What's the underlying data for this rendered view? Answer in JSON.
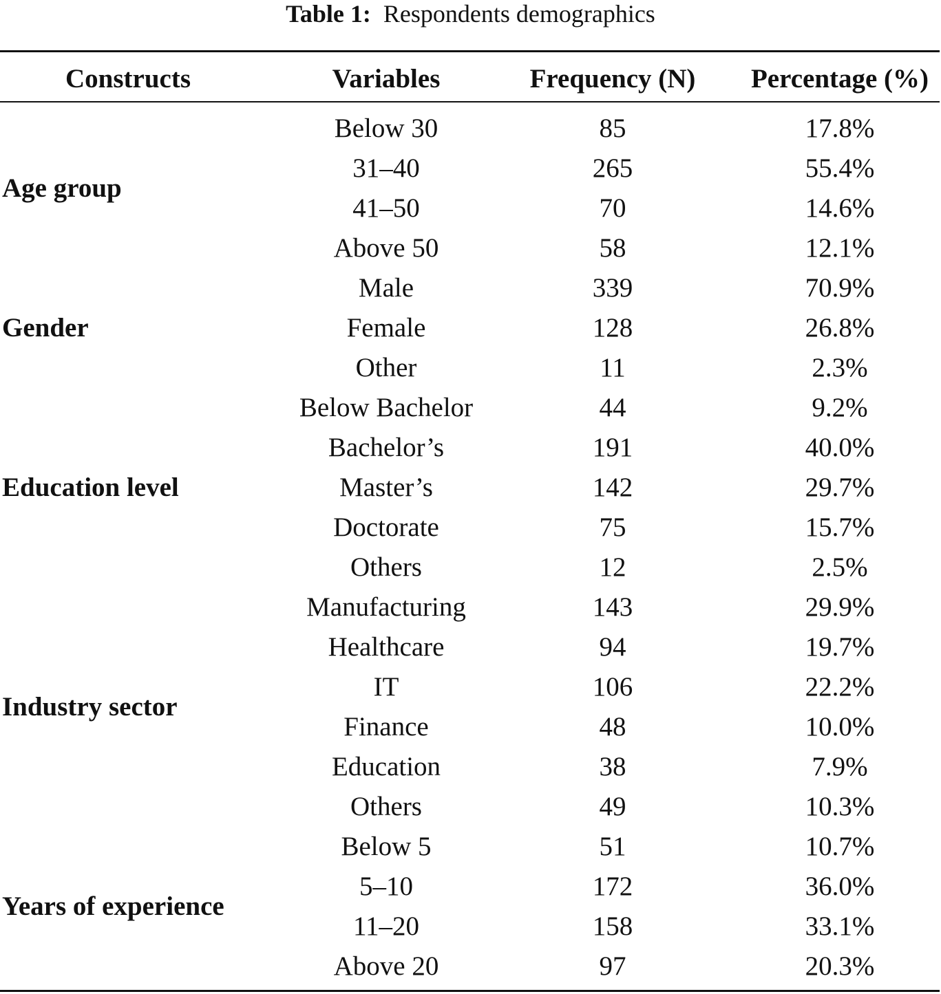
{
  "table": {
    "caption": {
      "label": "Table 1:",
      "text": "Respondents demographics"
    },
    "columns": [
      "Constructs",
      "Variables",
      "Frequency (N)",
      "Percentage (%)"
    ],
    "groups": [
      {
        "construct": "Age group",
        "rows": [
          [
            "Below 30",
            85,
            "17.8%"
          ],
          [
            "31–40",
            265,
            "55.4%"
          ],
          [
            "41–50",
            70,
            "14.6%"
          ],
          [
            "Above 50",
            58,
            "12.1%"
          ]
        ]
      },
      {
        "construct": "Gender",
        "rows": [
          [
            "Male",
            339,
            "70.9%"
          ],
          [
            "Female",
            128,
            "26.8%"
          ],
          [
            "Other",
            11,
            "2.3%"
          ]
        ]
      },
      {
        "construct": "Education level",
        "rows": [
          [
            "Below Bachelor",
            44,
            "9.2%"
          ],
          [
            "Bachelor’s",
            191,
            "40.0%"
          ],
          [
            "Master’s",
            142,
            "29.7%"
          ],
          [
            "Doctorate",
            75,
            "15.7%"
          ],
          [
            "Others",
            12,
            "2.5%"
          ]
        ]
      },
      {
        "construct": "Industry sector",
        "rows": [
          [
            "Manufacturing",
            143,
            "29.9%"
          ],
          [
            "Healthcare",
            94,
            "19.7%"
          ],
          [
            "IT",
            106,
            "22.2%"
          ],
          [
            "Finance",
            48,
            "10.0%"
          ],
          [
            "Education",
            38,
            "7.9%"
          ],
          [
            "Others",
            49,
            "10.3%"
          ]
        ]
      },
      {
        "construct": "Years of experience",
        "rows": [
          [
            "Below 5",
            51,
            "10.7%"
          ],
          [
            "5–10",
            172,
            "36.0%"
          ],
          [
            "11–20",
            158,
            "33.1%"
          ],
          [
            "Above 20",
            97,
            "20.3%"
          ]
        ]
      }
    ]
  }
}
